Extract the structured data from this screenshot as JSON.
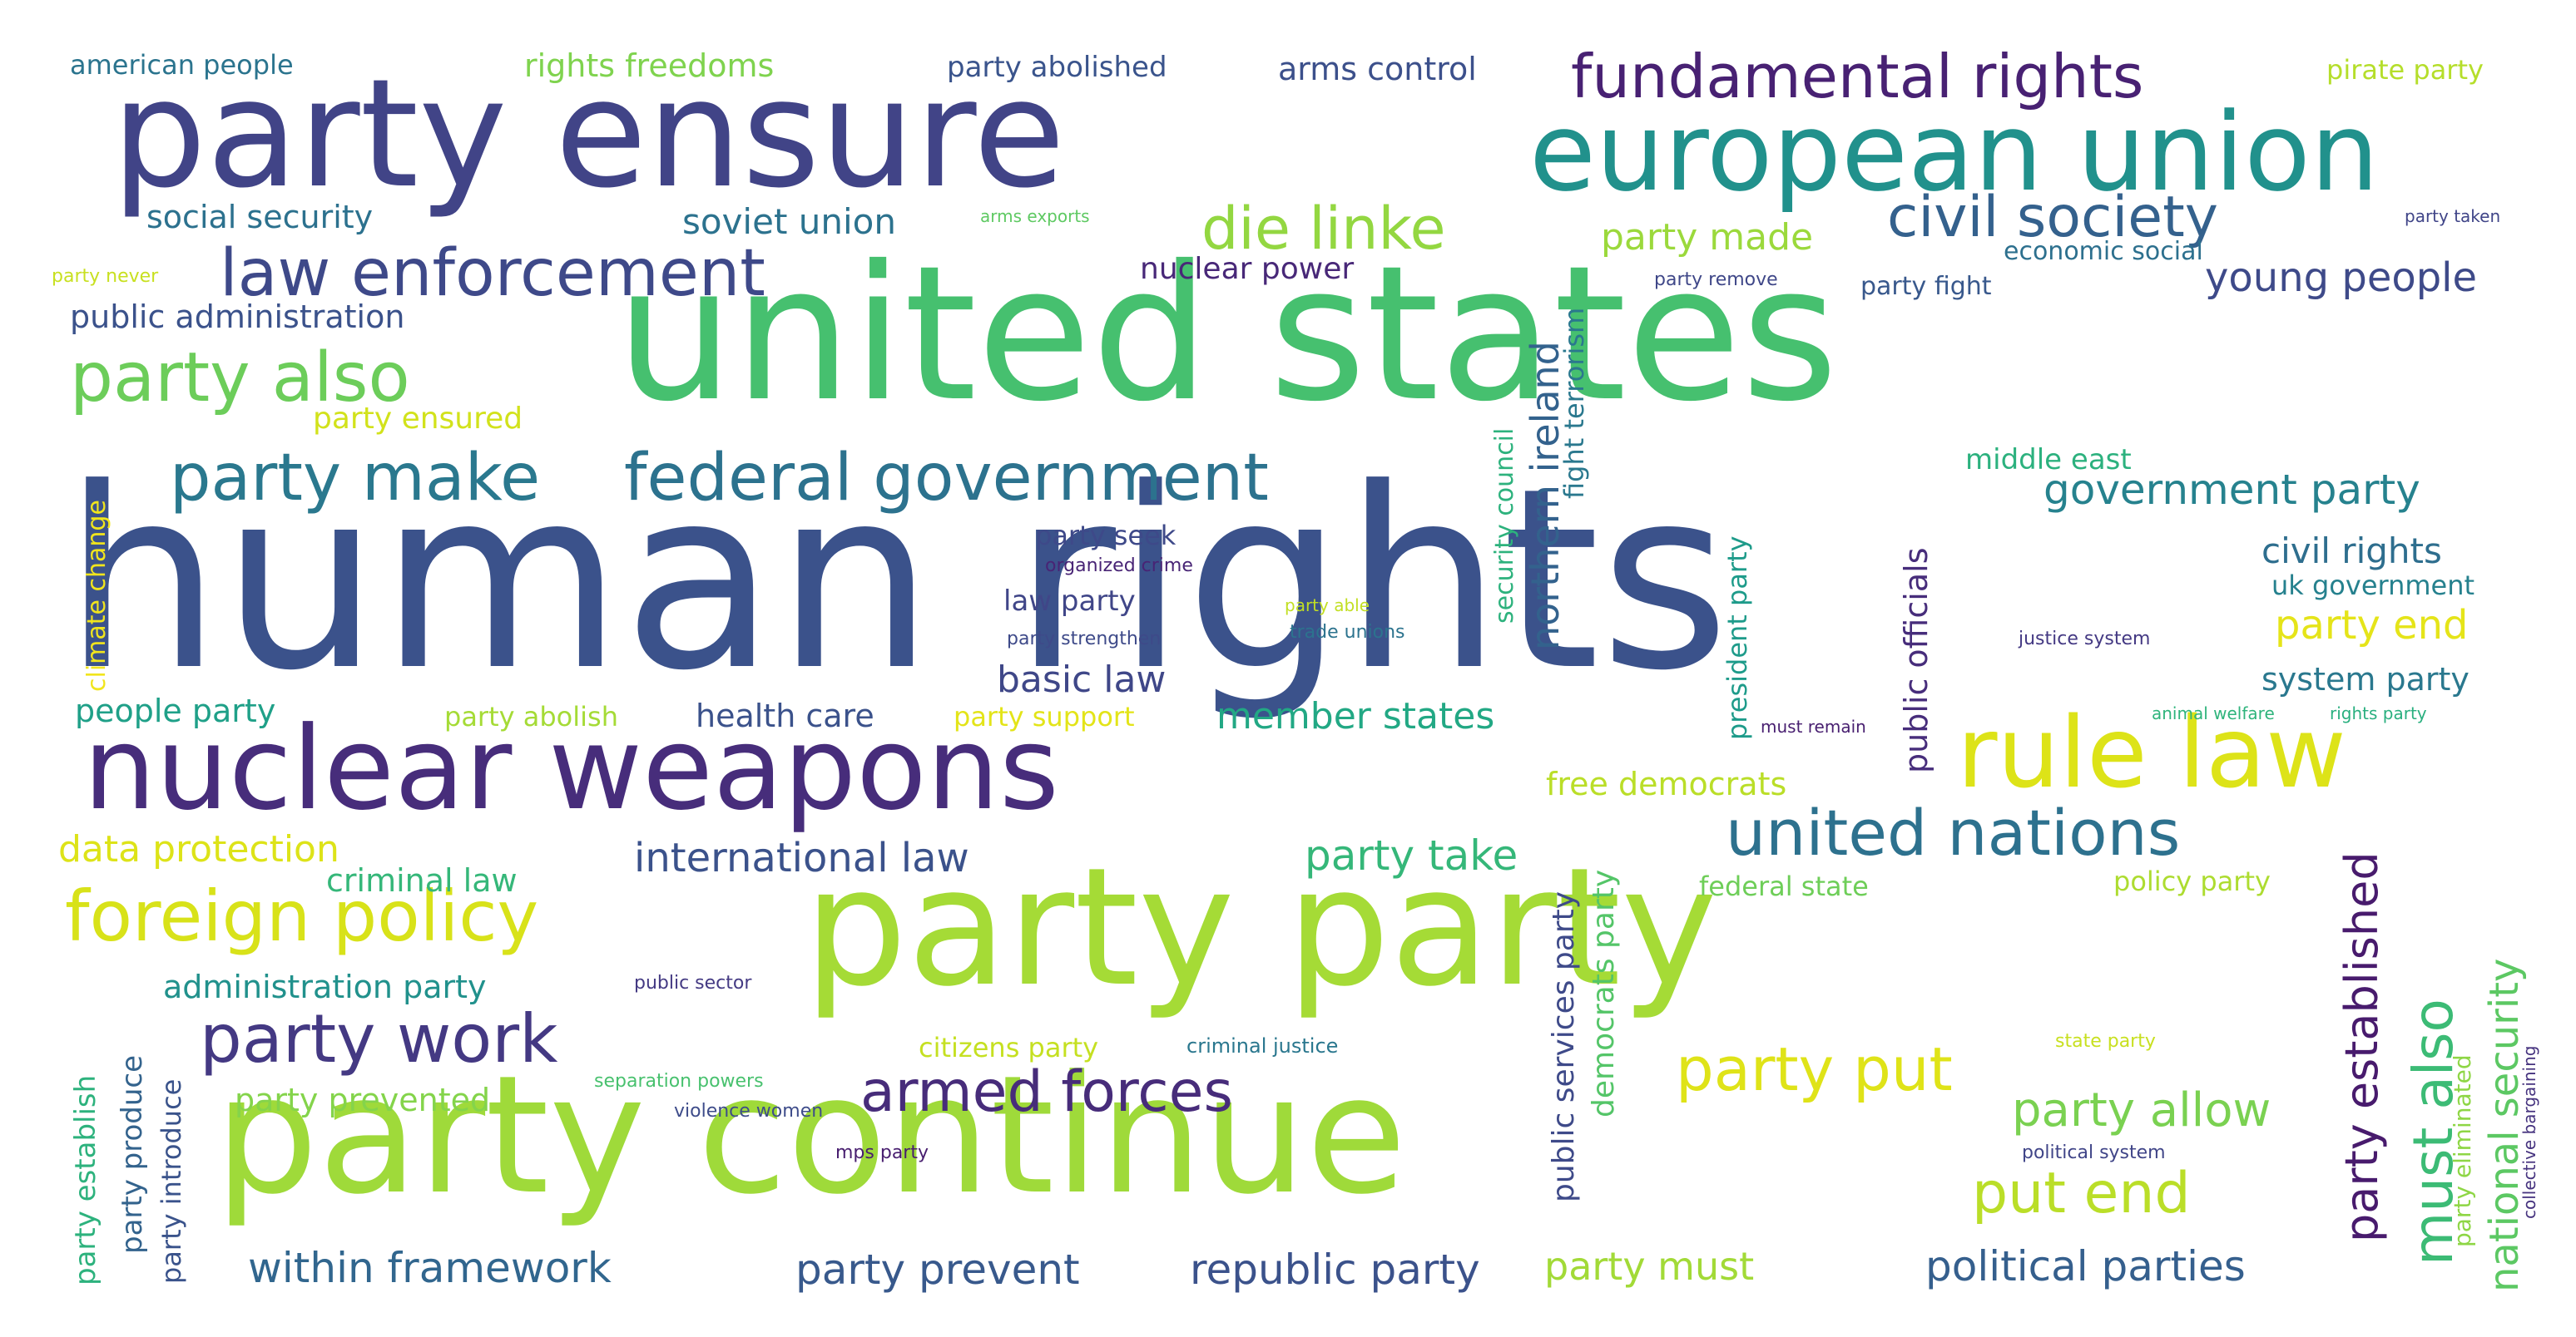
{
  "words": [
    {
      "text": "human rights",
      "color": "#3b528b"
    },
    {
      "text": "united states",
      "color": "#46c06f"
    },
    {
      "text": "party party",
      "color": "#a5db36"
    },
    {
      "text": "party continue",
      "color": "#9fda3a"
    },
    {
      "text": "party ensure",
      "color": "#414487"
    },
    {
      "text": "nuclear weapons",
      "color": "#472d7b"
    },
    {
      "text": "european union",
      "color": "#21918c"
    },
    {
      "text": "rule law",
      "color": "#dde318"
    },
    {
      "text": "foreign policy",
      "color": "#d8e219"
    },
    {
      "text": "fundamental rights",
      "color": "#482173"
    },
    {
      "text": "party make",
      "color": "#2a788e"
    },
    {
      "text": "federal government",
      "color": "#2c728e"
    },
    {
      "text": "law enforcement",
      "color": "#3e4989"
    },
    {
      "text": "party also",
      "color": "#6ccd5a"
    },
    {
      "text": "united nations",
      "color": "#2d718e"
    },
    {
      "text": "party work",
      "color": "#443983"
    },
    {
      "text": "armed forces",
      "color": "#472c7a"
    },
    {
      "text": "civil society",
      "color": "#34618d"
    },
    {
      "text": "die linke",
      "color": "#93d741"
    },
    {
      "text": "party put",
      "color": "#dfe318"
    },
    {
      "text": "put end",
      "color": "#bade28"
    },
    {
      "text": "must also",
      "color": "#3cbb75"
    },
    {
      "text": "party established",
      "color": "#481b6d"
    },
    {
      "text": "national security",
      "color": "#5cc863"
    },
    {
      "text": "northern ireland",
      "color": "#33628d"
    },
    {
      "text": "party allow",
      "color": "#7ad151"
    },
    {
      "text": "international law",
      "color": "#3b528b"
    },
    {
      "text": "party take",
      "color": "#35b779"
    },
    {
      "text": "within framework",
      "color": "#31668e"
    },
    {
      "text": "party prevent",
      "color": "#38598c"
    },
    {
      "text": "republic party",
      "color": "#3b528b"
    },
    {
      "text": "political parties",
      "color": "#355f8d"
    },
    {
      "text": "government party",
      "color": "#26828e"
    },
    {
      "text": "party must",
      "color": "#a2da37"
    },
    {
      "text": "young people",
      "color": "#3e4a89"
    },
    {
      "text": "party end",
      "color": "#e5e419"
    },
    {
      "text": "civil rights",
      "color": "#2e6e8e"
    },
    {
      "text": "basic law",
      "color": "#3f4788"
    },
    {
      "text": "member states",
      "color": "#22a884"
    },
    {
      "text": "party made",
      "color": "#9bd93c"
    },
    {
      "text": "soviet union",
      "color": "#2c728e"
    },
    {
      "text": "data protection",
      "color": "#dde318"
    },
    {
      "text": "rights freedoms",
      "color": "#7fd34e"
    },
    {
      "text": "arms control",
      "color": "#3c508b"
    },
    {
      "text": "party abolished",
      "color": "#3a548c"
    },
    {
      "text": "american people",
      "color": "#2b748e"
    },
    {
      "text": "pirate party",
      "color": "#b5de2b"
    },
    {
      "text": "social security",
      "color": "#2c718e"
    },
    {
      "text": "nuclear power",
      "color": "#482878"
    },
    {
      "text": "public administration",
      "color": "#3b528b"
    },
    {
      "text": "party ensured",
      "color": "#d2e21b"
    },
    {
      "text": "administration party",
      "color": "#21918c"
    },
    {
      "text": "criminal law",
      "color": "#35b779"
    },
    {
      "text": "people party",
      "color": "#1fa088"
    },
    {
      "text": "health care",
      "color": "#3b528b"
    },
    {
      "text": "party abolish",
      "color": "#a5db36"
    },
    {
      "text": "party support",
      "color": "#e3e418"
    },
    {
      "text": "party seek",
      "color": "#3e4989"
    },
    {
      "text": "law party",
      "color": "#404688"
    },
    {
      "text": "organized crime",
      "color": "#482475"
    },
    {
      "text": "party strengthen",
      "color": "#3e4a89"
    },
    {
      "text": "trade unions",
      "color": "#2c738e"
    },
    {
      "text": "party able",
      "color": "#c2df23"
    },
    {
      "text": "security council",
      "color": "#2db27d"
    },
    {
      "text": "fight terrorism",
      "color": "#2a788e"
    },
    {
      "text": "middle east",
      "color": "#2cb17e"
    },
    {
      "text": "president party",
      "color": "#1e9b8a"
    },
    {
      "text": "public officials",
      "color": "#472d7b"
    },
    {
      "text": "must remain",
      "color": "#481f70"
    },
    {
      "text": "justice system",
      "color": "#443983"
    },
    {
      "text": "uk government",
      "color": "#26818e"
    },
    {
      "text": "system party",
      "color": "#2a788e"
    },
    {
      "text": "animal welfare",
      "color": "#2fb47c"
    },
    {
      "text": "rights party",
      "color": "#29af7f"
    },
    {
      "text": "free democrats",
      "color": "#bade28"
    },
    {
      "text": "federal state",
      "color": "#6ece58"
    },
    {
      "text": "policy party",
      "color": "#addc30"
    },
    {
      "text": "democrats party",
      "color": "#54c568"
    },
    {
      "text": "public services party",
      "color": "#3e4a89"
    },
    {
      "text": "economic social",
      "color": "#2d708e"
    },
    {
      "text": "party fight",
      "color": "#38588c"
    },
    {
      "text": "party remove",
      "color": "#3f4788"
    },
    {
      "text": "party taken",
      "color": "#404588"
    },
    {
      "text": "party never",
      "color": "#c8e020"
    },
    {
      "text": "arms exports",
      "color": "#5ec962"
    },
    {
      "text": "climate change",
      "color": "#f1e51d"
    },
    {
      "text": "party establish",
      "color": "#2db27d"
    },
    {
      "text": "party produce",
      "color": "#33638d"
    },
    {
      "text": "party introduce",
      "color": "#3a538b"
    },
    {
      "text": "party prevented",
      "color": "#84d44b"
    },
    {
      "text": "citizens party",
      "color": "#c5e021"
    },
    {
      "text": "criminal justice",
      "color": "#2a778e"
    },
    {
      "text": "public sector",
      "color": "#443a83"
    },
    {
      "text": "separation powers",
      "color": "#48c16e"
    },
    {
      "text": "violence women",
      "color": "#3e4c8a"
    },
    {
      "text": "mps party",
      "color": "#481e6f"
    },
    {
      "text": "state party",
      "color": "#c8e020"
    },
    {
      "text": "political system",
      "color": "#404588"
    },
    {
      "text": "party eliminated",
      "color": "#8ed645"
    },
    {
      "text": "collective bargaining",
      "color": "#46337f"
    }
  ]
}
